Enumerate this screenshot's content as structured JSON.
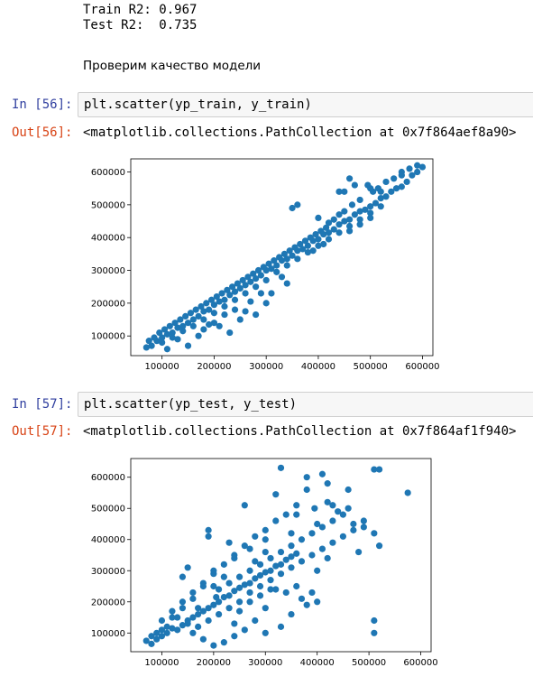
{
  "top_output": {
    "train_r2": "Train R2: 0.967",
    "test_r2": "Test R2:  0.735"
  },
  "markdown": {
    "text": "Проверим качество модели"
  },
  "cells": [
    {
      "in_prompt": "In [56]:",
      "code": "plt.scatter(yp_train, y_train)",
      "out_prompt": "Out[56]:",
      "out_repr": "<matplotlib.collections.PathCollection at 0x7f864aef8a90>"
    },
    {
      "in_prompt": "In [57]:",
      "code": "plt.scatter(yp_test, y_test)",
      "out_prompt": "Out[57]:",
      "out_repr": "<matplotlib.collections.PathCollection at 0x7f864af1f940>"
    }
  ],
  "chart_data": [
    {
      "type": "scatter",
      "color": "#1f77b4",
      "xlim": [
        40000,
        620000
      ],
      "ylim": [
        40000,
        640000
      ],
      "x_ticks": [
        "100000",
        "200000",
        "300000",
        "400000",
        "500000",
        "600000"
      ],
      "y_ticks": [
        "100000",
        "200000",
        "300000",
        "400000",
        "500000",
        "600000"
      ],
      "points": [
        [
          70000,
          65000
        ],
        [
          80000,
          70000
        ],
        [
          90000,
          85000
        ],
        [
          100000,
          95000
        ],
        [
          110000,
          105000
        ],
        [
          120000,
          110000
        ],
        [
          130000,
          125000
        ],
        [
          140000,
          130000
        ],
        [
          150000,
          140000
        ],
        [
          160000,
          150000
        ],
        [
          170000,
          160000
        ],
        [
          180000,
          175000
        ],
        [
          190000,
          180000
        ],
        [
          200000,
          195000
        ],
        [
          210000,
          205000
        ],
        [
          220000,
          210000
        ],
        [
          230000,
          225000
        ],
        [
          240000,
          235000
        ],
        [
          250000,
          245000
        ],
        [
          260000,
          255000
        ],
        [
          270000,
          265000
        ],
        [
          280000,
          275000
        ],
        [
          290000,
          285000
        ],
        [
          300000,
          300000
        ],
        [
          310000,
          305000
        ],
        [
          320000,
          315000
        ],
        [
          330000,
          330000
        ],
        [
          340000,
          335000
        ],
        [
          350000,
          345000
        ],
        [
          360000,
          360000
        ],
        [
          370000,
          365000
        ],
        [
          380000,
          375000
        ],
        [
          390000,
          390000
        ],
        [
          400000,
          395000
        ],
        [
          410000,
          410000
        ],
        [
          420000,
          415000
        ],
        [
          430000,
          425000
        ],
        [
          440000,
          440000
        ],
        [
          450000,
          450000
        ],
        [
          460000,
          455000
        ],
        [
          470000,
          470000
        ],
        [
          480000,
          480000
        ],
        [
          490000,
          485000
        ],
        [
          500000,
          495000
        ],
        [
          510000,
          505000
        ],
        [
          520000,
          520000
        ],
        [
          530000,
          525000
        ],
        [
          540000,
          540000
        ],
        [
          550000,
          550000
        ],
        [
          560000,
          555000
        ],
        [
          570000,
          570000
        ],
        [
          580000,
          590000
        ],
        [
          590000,
          600000
        ],
        [
          600000,
          615000
        ],
        [
          590000,
          620000
        ],
        [
          575000,
          610000
        ],
        [
          560000,
          600000
        ],
        [
          545000,
          580000
        ],
        [
          530000,
          570000
        ],
        [
          515000,
          550000
        ],
        [
          505000,
          540000
        ],
        [
          495000,
          560000
        ],
        [
          480000,
          515000
        ],
        [
          465000,
          500000
        ],
        [
          450000,
          480000
        ],
        [
          440000,
          470000
        ],
        [
          430000,
          455000
        ],
        [
          415000,
          430000
        ],
        [
          405000,
          420000
        ],
        [
          395000,
          410000
        ],
        [
          385000,
          400000
        ],
        [
          375000,
          390000
        ],
        [
          365000,
          380000
        ],
        [
          355000,
          370000
        ],
        [
          345000,
          360000
        ],
        [
          335000,
          350000
        ],
        [
          325000,
          340000
        ],
        [
          315000,
          330000
        ],
        [
          305000,
          320000
        ],
        [
          295000,
          310000
        ],
        [
          285000,
          300000
        ],
        [
          275000,
          290000
        ],
        [
          265000,
          280000
        ],
        [
          255000,
          270000
        ],
        [
          245000,
          260000
        ],
        [
          235000,
          250000
        ],
        [
          225000,
          240000
        ],
        [
          215000,
          230000
        ],
        [
          205000,
          220000
        ],
        [
          195000,
          210000
        ],
        [
          185000,
          200000
        ],
        [
          175000,
          190000
        ],
        [
          165000,
          180000
        ],
        [
          155000,
          170000
        ],
        [
          145000,
          160000
        ],
        [
          135000,
          150000
        ],
        [
          125000,
          140000
        ],
        [
          115000,
          130000
        ],
        [
          105000,
          120000
        ],
        [
          95000,
          110000
        ],
        [
          85000,
          95000
        ],
        [
          75000,
          85000
        ],
        [
          100000,
          80000
        ],
        [
          120000,
          95000
        ],
        [
          140000,
          115000
        ],
        [
          160000,
          130000
        ],
        [
          180000,
          150000
        ],
        [
          200000,
          170000
        ],
        [
          220000,
          190000
        ],
        [
          240000,
          210000
        ],
        [
          260000,
          230000
        ],
        [
          280000,
          250000
        ],
        [
          300000,
          270000
        ],
        [
          320000,
          295000
        ],
        [
          340000,
          315000
        ],
        [
          360000,
          335000
        ],
        [
          380000,
          355000
        ],
        [
          400000,
          375000
        ],
        [
          420000,
          395000
        ],
        [
          440000,
          415000
        ],
        [
          460000,
          435000
        ],
        [
          480000,
          455000
        ],
        [
          500000,
          475000
        ],
        [
          520000,
          495000
        ],
        [
          170000,
          100000
        ],
        [
          210000,
          130000
        ],
        [
          230000,
          110000
        ],
        [
          250000,
          150000
        ],
        [
          280000,
          165000
        ],
        [
          290000,
          230000
        ],
        [
          330000,
          280000
        ],
        [
          360000,
          500000
        ],
        [
          350000,
          490000
        ],
        [
          400000,
          460000
        ],
        [
          440000,
          540000
        ],
        [
          470000,
          560000
        ],
        [
          460000,
          580000
        ],
        [
          500000,
          550000
        ],
        [
          520000,
          540000
        ],
        [
          560000,
          590000
        ],
        [
          420000,
          445000
        ],
        [
          460000,
          420000
        ],
        [
          480000,
          440000
        ],
        [
          500000,
          460000
        ],
        [
          390000,
          360000
        ],
        [
          410000,
          380000
        ],
        [
          450000,
          540000
        ],
        [
          110000,
          60000
        ],
        [
          150000,
          70000
        ],
        [
          130000,
          90000
        ],
        [
          200000,
          140000
        ],
        [
          260000,
          175000
        ],
        [
          300000,
          200000
        ],
        [
          310000,
          230000
        ],
        [
          340000,
          260000
        ],
        [
          180000,
          120000
        ],
        [
          190000,
          135000
        ],
        [
          220000,
          165000
        ],
        [
          240000,
          180000
        ],
        [
          270000,
          205000
        ]
      ]
    },
    {
      "type": "scatter",
      "color": "#1f77b4",
      "xlim": [
        40000,
        620000
      ],
      "ylim": [
        40000,
        660000
      ],
      "x_ticks": [
        "100000",
        "200000",
        "300000",
        "400000",
        "500000",
        "600000"
      ],
      "y_ticks": [
        "100000",
        "200000",
        "300000",
        "400000",
        "500000",
        "600000"
      ],
      "points": [
        [
          70000,
          75000
        ],
        [
          80000,
          65000
        ],
        [
          90000,
          80000
        ],
        [
          100000,
          90000
        ],
        [
          110000,
          100000
        ],
        [
          120000,
          115000
        ],
        [
          130000,
          110000
        ],
        [
          140000,
          125000
        ],
        [
          150000,
          140000
        ],
        [
          160000,
          150000
        ],
        [
          170000,
          160000
        ],
        [
          180000,
          170000
        ],
        [
          190000,
          180000
        ],
        [
          200000,
          190000
        ],
        [
          210000,
          200000
        ],
        [
          220000,
          215000
        ],
        [
          230000,
          220000
        ],
        [
          240000,
          235000
        ],
        [
          250000,
          245000
        ],
        [
          260000,
          255000
        ],
        [
          270000,
          260000
        ],
        [
          280000,
          275000
        ],
        [
          290000,
          285000
        ],
        [
          300000,
          295000
        ],
        [
          310000,
          300000
        ],
        [
          320000,
          315000
        ],
        [
          330000,
          320000
        ],
        [
          340000,
          335000
        ],
        [
          350000,
          345000
        ],
        [
          360000,
          355000
        ],
        [
          100000,
          140000
        ],
        [
          120000,
          170000
        ],
        [
          140000,
          200000
        ],
        [
          160000,
          230000
        ],
        [
          180000,
          260000
        ],
        [
          200000,
          290000
        ],
        [
          220000,
          320000
        ],
        [
          240000,
          350000
        ],
        [
          260000,
          380000
        ],
        [
          280000,
          410000
        ],
        [
          300000,
          430000
        ],
        [
          320000,
          460000
        ],
        [
          340000,
          480000
        ],
        [
          360000,
          510000
        ],
        [
          140000,
          280000
        ],
        [
          150000,
          310000
        ],
        [
          190000,
          410000
        ],
        [
          190000,
          430000
        ],
        [
          230000,
          390000
        ],
        [
          260000,
          510000
        ],
        [
          330000,
          630000
        ],
        [
          320000,
          545000
        ],
        [
          380000,
          560000
        ],
        [
          380000,
          600000
        ],
        [
          410000,
          610000
        ],
        [
          420000,
          580000
        ],
        [
          430000,
          510000
        ],
        [
          440000,
          490000
        ],
        [
          470000,
          450000
        ],
        [
          510000,
          625000
        ],
        [
          520000,
          625000
        ],
        [
          575000,
          550000
        ],
        [
          490000,
          460000
        ],
        [
          510000,
          420000
        ],
        [
          520000,
          380000
        ],
        [
          480000,
          360000
        ],
        [
          420000,
          340000
        ],
        [
          400000,
          300000
        ],
        [
          390000,
          230000
        ],
        [
          370000,
          210000
        ],
        [
          350000,
          160000
        ],
        [
          330000,
          120000
        ],
        [
          300000,
          100000
        ],
        [
          280000,
          140000
        ],
        [
          260000,
          110000
        ],
        [
          240000,
          90000
        ],
        [
          220000,
          70000
        ],
        [
          200000,
          60000
        ],
        [
          180000,
          80000
        ],
        [
          160000,
          100000
        ],
        [
          510000,
          140000
        ],
        [
          510000,
          100000
        ],
        [
          400000,
          200000
        ],
        [
          380000,
          190000
        ],
        [
          360000,
          250000
        ],
        [
          340000,
          230000
        ],
        [
          320000,
          240000
        ],
        [
          300000,
          180000
        ],
        [
          240000,
          130000
        ],
        [
          250000,
          200000
        ],
        [
          270000,
          230000
        ],
        [
          290000,
          250000
        ],
        [
          310000,
          270000
        ],
        [
          330000,
          290000
        ],
        [
          350000,
          310000
        ],
        [
          370000,
          330000
        ],
        [
          390000,
          350000
        ],
        [
          410000,
          370000
        ],
        [
          430000,
          390000
        ],
        [
          450000,
          410000
        ],
        [
          470000,
          430000
        ],
        [
          490000,
          440000
        ],
        [
          170000,
          120000
        ],
        [
          190000,
          140000
        ],
        [
          210000,
          160000
        ],
        [
          230000,
          180000
        ],
        [
          250000,
          170000
        ],
        [
          270000,
          200000
        ],
        [
          290000,
          220000
        ],
        [
          310000,
          240000
        ],
        [
          150000,
          130000
        ],
        [
          130000,
          150000
        ],
        [
          110000,
          120000
        ],
        [
          90000,
          100000
        ],
        [
          210000,
          240000
        ],
        [
          230000,
          260000
        ],
        [
          250000,
          280000
        ],
        [
          270000,
          300000
        ],
        [
          290000,
          320000
        ],
        [
          310000,
          340000
        ],
        [
          330000,
          360000
        ],
        [
          350000,
          380000
        ],
        [
          370000,
          400000
        ],
        [
          390000,
          420000
        ],
        [
          410000,
          440000
        ],
        [
          430000,
          460000
        ],
        [
          450000,
          480000
        ],
        [
          460000,
          500000
        ],
        [
          400000,
          450000
        ],
        [
          350000,
          420000
        ],
        [
          300000,
          400000
        ],
        [
          270000,
          370000
        ],
        [
          240000,
          340000
        ],
        [
          200000,
          300000
        ],
        [
          180000,
          250000
        ],
        [
          160000,
          210000
        ],
        [
          140000,
          180000
        ],
        [
          120000,
          150000
        ],
        [
          100000,
          110000
        ],
        [
          80000,
          90000
        ],
        [
          460000,
          560000
        ],
        [
          420000,
          520000
        ],
        [
          395000,
          500000
        ],
        [
          360000,
          480000
        ],
        [
          300000,
          360000
        ],
        [
          280000,
          330000
        ],
        [
          200000,
          250000
        ],
        [
          220000,
          280000
        ],
        [
          170000,
          180000
        ],
        [
          205000,
          215000
        ]
      ]
    }
  ]
}
